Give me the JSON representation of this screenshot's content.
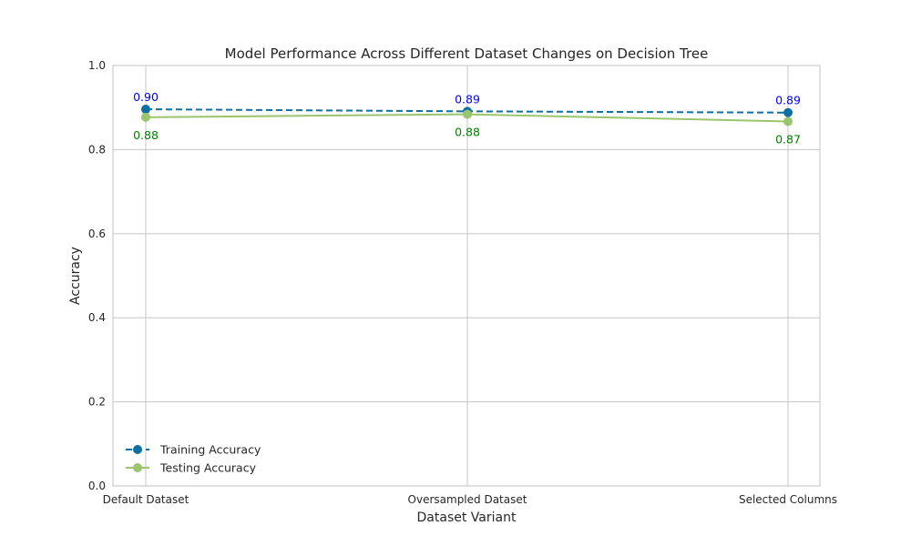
{
  "chart_data": {
    "type": "line",
    "title": "Model Performance Across Different Dataset Changes on Decision Tree",
    "xlabel": "Dataset Variant",
    "ylabel": "Accuracy",
    "categories": [
      "Default Dataset",
      "Oversampled Dataset",
      "Selected Columns"
    ],
    "ylim": [
      0,
      1.0
    ],
    "yticks": [
      "0.0",
      "0.2",
      "0.4",
      "0.6",
      "0.8",
      "1.0"
    ],
    "grid": true,
    "legend_position": "lower-left",
    "series": [
      {
        "name": "Training Accuracy",
        "values": [
          0.896,
          0.891,
          0.888
        ],
        "labels": [
          "0.90",
          "0.89",
          "0.89"
        ],
        "color": "#0e6fa3",
        "label_color": "#0000ff",
        "line_style": "dashed",
        "label_position": "above"
      },
      {
        "name": "Testing Accuracy",
        "values": [
          0.877,
          0.884,
          0.867
        ],
        "labels": [
          "0.88",
          "0.88",
          "0.87"
        ],
        "color": "#9bc46e",
        "label_color": "#008000",
        "line_style": "solid",
        "label_position": "below"
      }
    ]
  }
}
